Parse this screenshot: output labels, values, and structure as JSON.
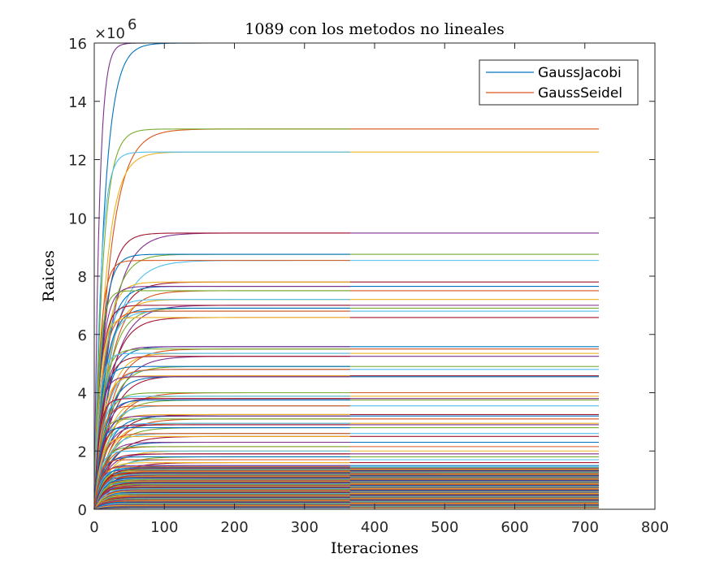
{
  "chart_data": {
    "type": "line",
    "title": "1089 con los metodos no lineales",
    "xlabel": "Iteraciones",
    "ylabel": "Raices",
    "xlim": [
      0,
      800
    ],
    "ylim": [
      0,
      16000000
    ],
    "x_ticks": [
      0,
      100,
      200,
      300,
      400,
      500,
      600,
      700,
      800
    ],
    "y_ticks": [
      0,
      2,
      4,
      6,
      8,
      10,
      12,
      14,
      16
    ],
    "y_exponent_base": "×10",
    "y_exponent_power": "6",
    "grid": false,
    "legend_position": "top-right",
    "iterations": {
      "GaussJacobi": 720,
      "GaussSeidel": 365
    },
    "series": [
      {
        "name": "GaussJacobi",
        "color": "#0072BD",
        "final_values": [
          16000000,
          13050000,
          12260000,
          9480000,
          8750000,
          8540000,
          7800000,
          7650000,
          7500000,
          7200000,
          7000000,
          6900000,
          6800000,
          6580000,
          5580000,
          5500000,
          5350000,
          5250000,
          4900000,
          4800000,
          4580000,
          4550000,
          4000000,
          3880000,
          3800000,
          3750000,
          3550000,
          3250000,
          3200000,
          3100000,
          2950000,
          2900000,
          2800000,
          2600000,
          2500000,
          2300000,
          2150000,
          2000000,
          1900000,
          1800000,
          1700000,
          1600000,
          1500000,
          1400000,
          1300000,
          1200000,
          1100000,
          1000000,
          900000,
          800000,
          700000,
          600000,
          500000,
          400000,
          300000,
          200000,
          100000,
          50000
        ]
      },
      {
        "name": "GaussSeidel",
        "color": "#D95319",
        "final_values": [
          16000000,
          13050000,
          12260000,
          9480000,
          8750000,
          8540000,
          7800000,
          7650000,
          7500000,
          7200000,
          7000000,
          6900000,
          6800000,
          6580000,
          5580000,
          5500000,
          5350000,
          5250000,
          4900000,
          4800000,
          4580000,
          4550000,
          4000000,
          3880000,
          3800000,
          3750000,
          3550000,
          3250000,
          3200000,
          3100000,
          2950000,
          2900000,
          2800000,
          2600000,
          2500000,
          2300000,
          2150000,
          2000000,
          1900000,
          1800000,
          1700000,
          1600000,
          1500000,
          1400000,
          1300000,
          1200000,
          1100000,
          1000000,
          900000,
          800000,
          700000,
          600000,
          500000,
          400000,
          300000,
          200000,
          100000,
          50000
        ]
      }
    ]
  },
  "colors": {
    "line_order": [
      "#0072BD",
      "#D95319",
      "#EDB120",
      "#7E2F8E",
      "#77AC30",
      "#4DBEEE",
      "#A2142F"
    ],
    "axis": "#262626"
  }
}
